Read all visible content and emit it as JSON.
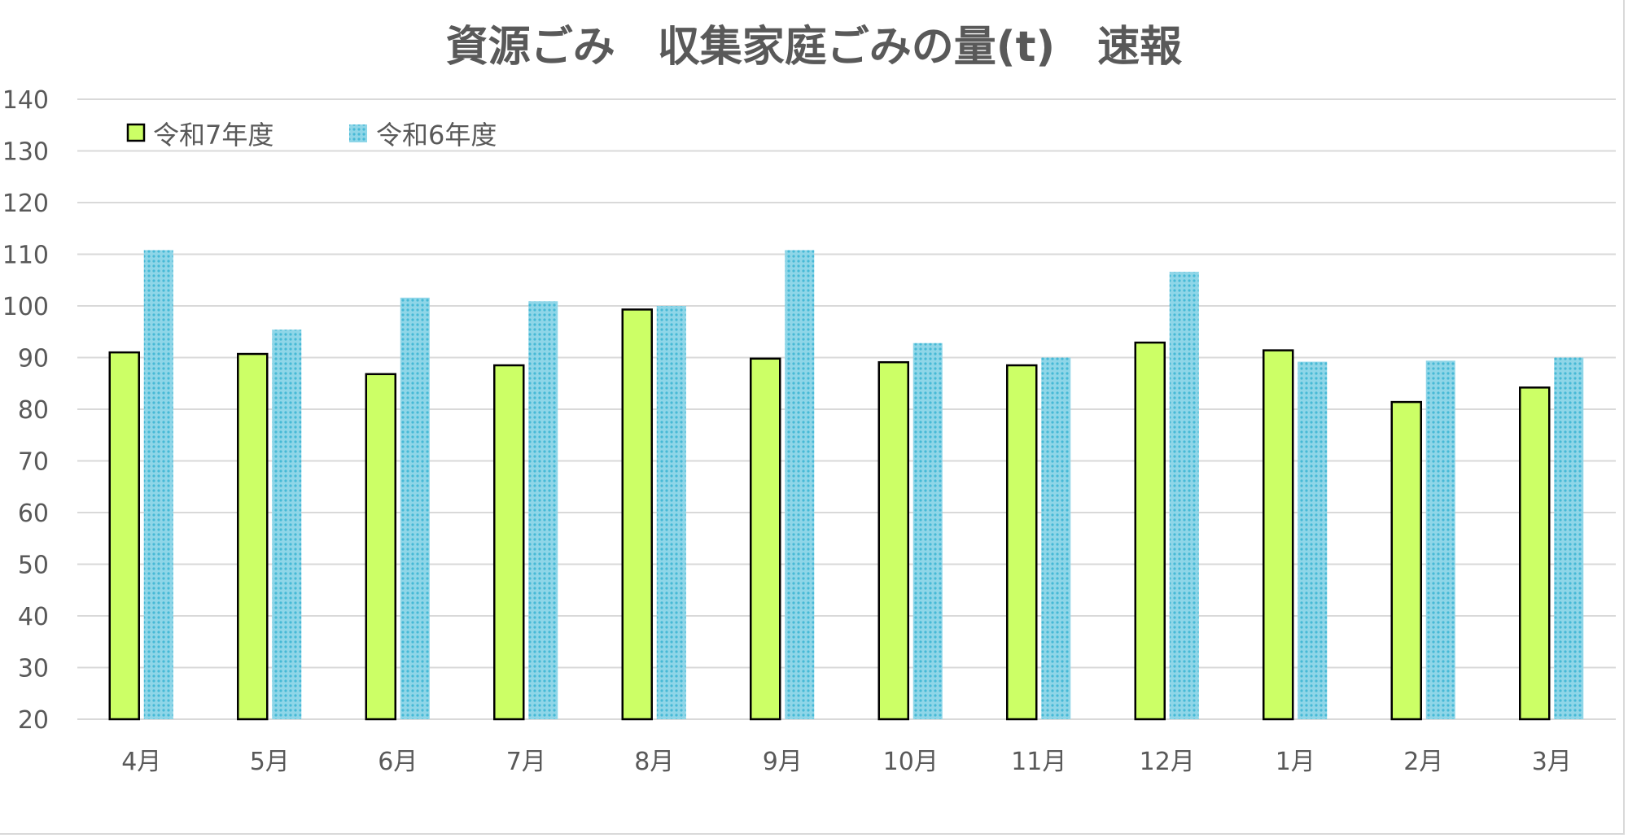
{
  "chart_data": {
    "type": "bar",
    "title": "資源ごみ　収集家庭ごみの量(t)　速報",
    "xlabel": "",
    "ylabel": "",
    "ylim": [
      20,
      140
    ],
    "yticks": [
      20,
      30,
      40,
      50,
      60,
      70,
      80,
      90,
      100,
      110,
      120,
      130,
      140
    ],
    "grid": true,
    "legend_position": "top-left",
    "categories": [
      "4月",
      "5月",
      "6月",
      "7月",
      "8月",
      "9月",
      "10月",
      "11月",
      "12月",
      "1月",
      "2月",
      "3月"
    ],
    "series": [
      {
        "name": "令和7年度",
        "color": "#ccff66",
        "values": [
          91,
          90.7,
          86.8,
          88.5,
          99.3,
          89.8,
          89.1,
          88.5,
          92.9,
          91.4,
          81.4,
          84.2
        ]
      },
      {
        "name": "令和6年度",
        "color": "#5bc4dd",
        "values": [
          110.8,
          95.4,
          101.6,
          100.9,
          100,
          110.8,
          92.8,
          90,
          106.6,
          89.2,
          89.4,
          90
        ]
      }
    ]
  }
}
